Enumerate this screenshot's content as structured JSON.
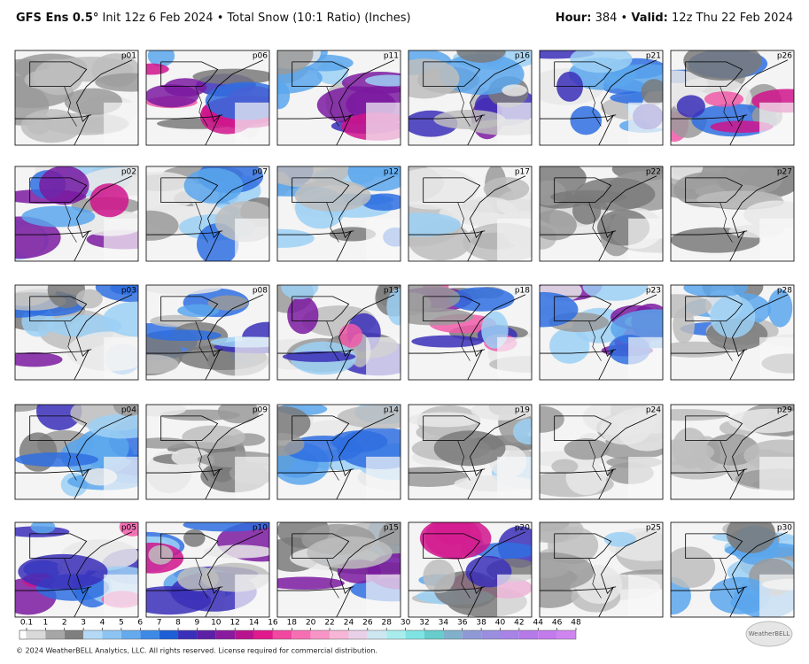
{
  "header": {
    "model": "GFS Ens 0.5°",
    "init": "Init 12z 6 Feb 2024",
    "bullet": "•",
    "product": "Total Snow (10:1 Ratio) (Inches)",
    "hour_label": "Hour:",
    "hour": "384",
    "valid_label": "Valid:",
    "valid": "12z Thu 22 Feb 2024"
  },
  "panels": [
    {
      "label": "p01"
    },
    {
      "label": "p02"
    },
    {
      "label": "p03"
    },
    {
      "label": "p04"
    },
    {
      "label": "p05"
    },
    {
      "label": "p06"
    },
    {
      "label": "p07"
    },
    {
      "label": "p08"
    },
    {
      "label": "p09"
    },
    {
      "label": "p10"
    },
    {
      "label": "p11"
    },
    {
      "label": "p12"
    },
    {
      "label": "p13"
    },
    {
      "label": "p14"
    },
    {
      "label": "p15"
    },
    {
      "label": "p16"
    },
    {
      "label": "p17"
    },
    {
      "label": "p18"
    },
    {
      "label": "p19"
    },
    {
      "label": "p20"
    },
    {
      "label": "p21"
    },
    {
      "label": "p22"
    },
    {
      "label": "p23"
    },
    {
      "label": "p24"
    },
    {
      "label": "p25"
    },
    {
      "label": "p26"
    },
    {
      "label": "p27"
    },
    {
      "label": "p28"
    },
    {
      "label": "p29"
    },
    {
      "label": "p30"
    }
  ],
  "legend": {
    "ticks": [
      0.1,
      1,
      2,
      3,
      4,
      5,
      6,
      7,
      8,
      9,
      10,
      12,
      14,
      16,
      18,
      20,
      22,
      24,
      26,
      28,
      30,
      32,
      34,
      36,
      38,
      40,
      42,
      44,
      46,
      48
    ],
    "colors": [
      "#d9d9d9",
      "#a6a6a6",
      "#7f7f7f",
      "#b3d9f7",
      "#8cc4f2",
      "#66aaee",
      "#3d8ae6",
      "#1f5fd6",
      "#3a2fb8",
      "#5d1fa6",
      "#8a1a9e",
      "#b8138f",
      "#e0198c",
      "#f0479f",
      "#f76fb3",
      "#f994c6",
      "#f7b6d6",
      "#e8d0e8",
      "#cde6f0",
      "#a8ecec",
      "#7fe3e3",
      "#66cccc",
      "#80b0cc",
      "#8f99d6",
      "#9a8ee0",
      "#a883e6",
      "#b57ae8",
      "#c27aec",
      "#cf85f0"
    ]
  },
  "footer": {
    "copyright": "© 2024 WeatherBELL Analytics, LLC. All rights reserved. License required for commercial distribution.",
    "logo": "WeatherBELL"
  }
}
